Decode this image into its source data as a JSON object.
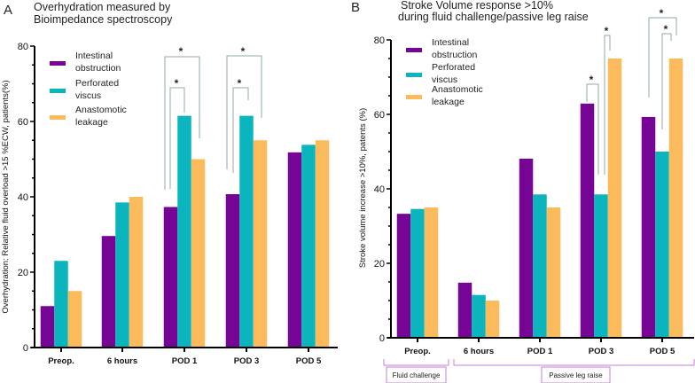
{
  "colors": {
    "series": [
      "#760596",
      "#0ab5bd",
      "#fbbb5d"
    ],
    "bracket": "#8fa9a4",
    "group": "#c77ddd"
  },
  "chart_data": [
    {
      "panel": "A",
      "type": "bar",
      "title_lines": [
        "Overhydration measured by",
        "Bioimpedance spectroscopy"
      ],
      "ylabel": "Overhydration: Relative fluid overload >15 %ECW, patients(%)",
      "xlabel": "",
      "ylim": [
        0,
        80
      ],
      "yticks": [
        "0",
        "20",
        "40",
        "60",
        "80"
      ],
      "categories": [
        "Preop.",
        "6 hours",
        "POD 1",
        "POD 3",
        "POD 5"
      ],
      "legend": [
        "Intestinal|obstruction",
        "Perforated|viscus",
        "Anastomotic|leakage"
      ],
      "legend_placement": "top-left",
      "series": [
        {
          "name": "Intestinal obstruction",
          "values": [
            11,
            29.6,
            37.3,
            40.7,
            51.8
          ]
        },
        {
          "name": "Perforated viscus",
          "values": [
            23,
            38.5,
            61.5,
            61.5,
            53.8
          ]
        },
        {
          "name": "Anastomotic leakage",
          "values": [
            15,
            40,
            50,
            55,
            55
          ]
        }
      ],
      "significance": [
        {
          "category": "POD 1",
          "between": [
            "Intestinal obstruction",
            "Perforated viscus"
          ],
          "label": "*"
        },
        {
          "category": "POD 1",
          "between": [
            "Intestinal obstruction",
            "Anastomotic leakage"
          ],
          "label": "*"
        },
        {
          "category": "POD 3",
          "between": [
            "Intestinal obstruction",
            "Perforated viscus"
          ],
          "label": "*"
        },
        {
          "category": "POD 3",
          "between": [
            "Intestinal obstruction",
            "Anastomotic leakage"
          ],
          "label": "*"
        }
      ]
    },
    {
      "panel": "B",
      "type": "bar",
      "title_lines": [
        "Stroke Volume response >10%",
        "during fluid challenge/passive leg raise"
      ],
      "ylabel": "Stroke volume increase >10%, patents (%)",
      "xlabel": "",
      "ylim": [
        0,
        80
      ],
      "yticks": [
        "0",
        "20",
        "40",
        "60",
        "80"
      ],
      "categories": [
        "Preop.",
        "6 hours",
        "POD 1",
        "POD 3",
        "POD 5"
      ],
      "legend": [
        "Intestinal|obstruction",
        "Perforated|viscus",
        "Anastomotic|leakage"
      ],
      "legend_placement": "top-left",
      "series": [
        {
          "name": "Intestinal obstruction",
          "values": [
            33.3,
            14.8,
            48.1,
            62.9,
            59.3
          ]
        },
        {
          "name": "Perforated viscus",
          "values": [
            34.6,
            11.5,
            38.5,
            38.5,
            50
          ]
        },
        {
          "name": "Anastomotic leakage",
          "values": [
            35,
            10,
            35,
            75,
            75
          ]
        }
      ],
      "groups": [
        {
          "label": "Fluid challenge",
          "categories": [
            "Preop."
          ]
        },
        {
          "label": "Passive leg raise",
          "categories": [
            "6 hours",
            "POD 1",
            "POD 3",
            "POD 5"
          ]
        }
      ],
      "significance": [
        {
          "category": "POD 3",
          "between": [
            "Intestinal obstruction",
            "Perforated viscus"
          ],
          "label": "*"
        },
        {
          "category": "POD 3",
          "between": [
            "Perforated viscus",
            "Anastomotic leakage"
          ],
          "label": "*"
        },
        {
          "category": "POD 5",
          "between": [
            "Perforated viscus",
            "Anastomotic leakage"
          ],
          "label": "*"
        },
        {
          "category": "POD 5",
          "between": [
            "Intestinal obstruction",
            "Anastomotic leakage"
          ],
          "label": "*"
        }
      ]
    }
  ]
}
